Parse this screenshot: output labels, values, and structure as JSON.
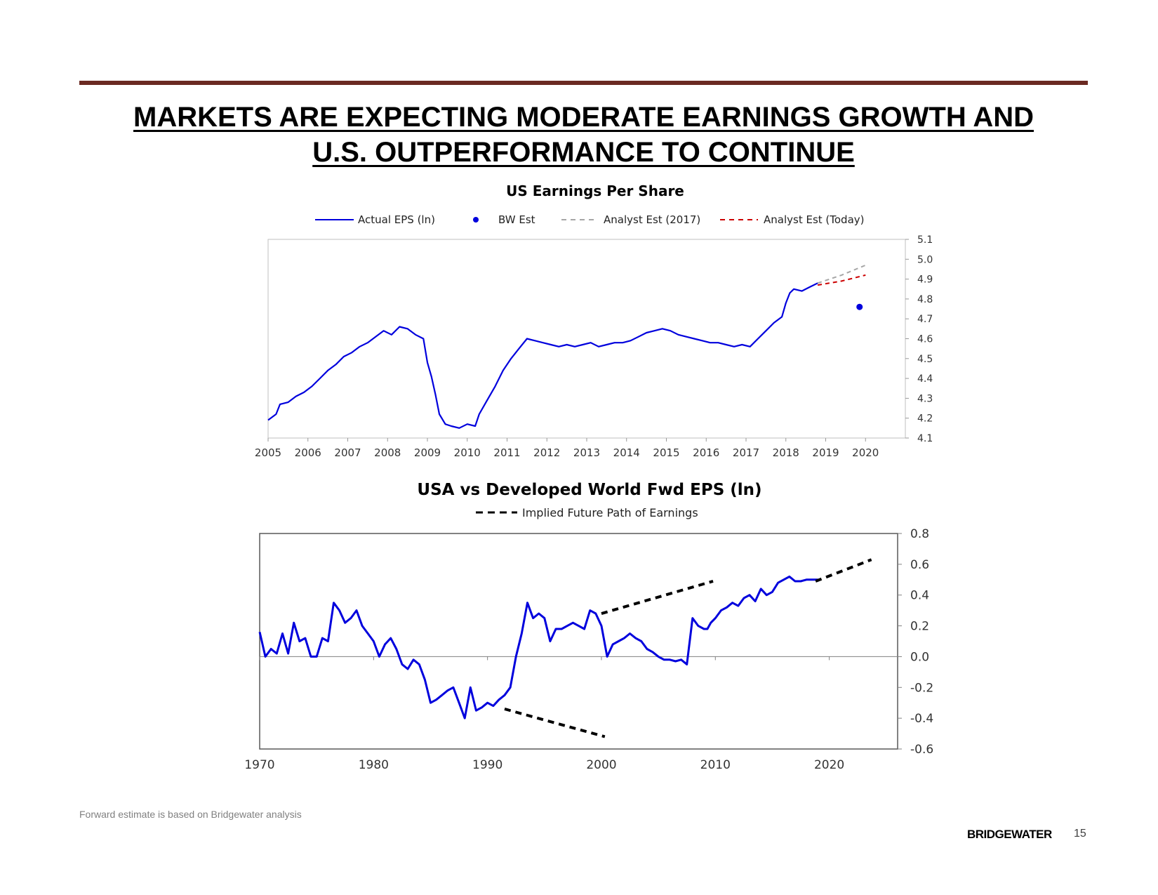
{
  "slide": {
    "title_line1": "MARKETS ARE EXPECTING MODERATE EARNINGS GROWTH AND",
    "title_line2": "U.S. OUTPERFORMANCE TO CONTINUE",
    "footnote": "Forward estimate is based on Bridgewater analysis",
    "brand": "BRIDGEWATER",
    "page_number": "15",
    "accent_color": "#6b2a22"
  },
  "chart_data": [
    {
      "type": "line",
      "title": "US Earnings Per Share",
      "xlabel": "",
      "ylabel": "",
      "xlim": [
        2005,
        2021
      ],
      "ylim": [
        4.1,
        5.1
      ],
      "x_ticks": [
        "2005",
        "2006",
        "2007",
        "2008",
        "2009",
        "2010",
        "2011",
        "2012",
        "2013",
        "2014",
        "2015",
        "2016",
        "2017",
        "2018",
        "2019",
        "2020"
      ],
      "y_ticks": [
        "4.1",
        "4.2",
        "4.3",
        "4.4",
        "4.5",
        "4.6",
        "4.7",
        "4.8",
        "4.9",
        "5.0",
        "5.1"
      ],
      "y_axis_side": "right",
      "legend_position": "top",
      "series": [
        {
          "name": "Actual EPS (ln)",
          "style": "solid",
          "color": "#0000dd",
          "x": [
            2005.0,
            2005.2,
            2005.3,
            2005.5,
            2005.7,
            2005.9,
            2006.1,
            2006.3,
            2006.5,
            2006.7,
            2006.9,
            2007.1,
            2007.3,
            2007.5,
            2007.7,
            2007.9,
            2008.1,
            2008.3,
            2008.5,
            2008.7,
            2008.9,
            2009.0,
            2009.1,
            2009.2,
            2009.3,
            2009.45,
            2009.6,
            2009.8,
            2010.0,
            2010.2,
            2010.3,
            2010.5,
            2010.7,
            2010.9,
            2011.1,
            2011.3,
            2011.5,
            2011.7,
            2011.9,
            2012.1,
            2012.3,
            2012.5,
            2012.7,
            2012.9,
            2013.1,
            2013.3,
            2013.5,
            2013.7,
            2013.9,
            2014.1,
            2014.3,
            2014.5,
            2014.7,
            2014.9,
            2015.1,
            2015.3,
            2015.5,
            2015.7,
            2015.9,
            2016.1,
            2016.3,
            2016.5,
            2016.7,
            2016.9,
            2017.1,
            2017.3,
            2017.5,
            2017.7,
            2017.9,
            2018.0,
            2018.1,
            2018.2,
            2018.4,
            2018.6,
            2018.8
          ],
          "values": [
            4.19,
            4.22,
            4.27,
            4.28,
            4.31,
            4.33,
            4.36,
            4.4,
            4.44,
            4.47,
            4.51,
            4.53,
            4.56,
            4.58,
            4.61,
            4.64,
            4.62,
            4.66,
            4.65,
            4.62,
            4.6,
            4.48,
            4.41,
            4.32,
            4.22,
            4.17,
            4.16,
            4.15,
            4.17,
            4.16,
            4.22,
            4.29,
            4.36,
            4.44,
            4.5,
            4.55,
            4.6,
            4.59,
            4.58,
            4.57,
            4.56,
            4.57,
            4.56,
            4.57,
            4.58,
            4.56,
            4.57,
            4.58,
            4.58,
            4.59,
            4.61,
            4.63,
            4.64,
            4.65,
            4.64,
            4.62,
            4.61,
            4.6,
            4.59,
            4.58,
            4.58,
            4.57,
            4.56,
            4.57,
            4.56,
            4.6,
            4.64,
            4.68,
            4.71,
            4.78,
            4.83,
            4.85,
            4.84,
            4.86,
            4.88
          ]
        },
        {
          "name": "BW Est",
          "style": "marker",
          "color": "#0000dd",
          "x": [
            2019.85
          ],
          "values": [
            4.76
          ]
        },
        {
          "name": "Analyst Est (2017)",
          "style": "dashed",
          "color": "#a6a6a6",
          "x": [
            2018.8,
            2019.4,
            2020.0
          ],
          "values": [
            4.88,
            4.92,
            4.97
          ]
        },
        {
          "name": "Analyst Est (Today)",
          "style": "dashed",
          "color": "#cc0000",
          "x": [
            2018.8,
            2019.4,
            2020.0
          ],
          "values": [
            4.87,
            4.89,
            4.92
          ]
        }
      ]
    },
    {
      "type": "line",
      "title": "USA vs Developed World Fwd EPS (ln)",
      "xlabel": "",
      "ylabel": "",
      "xlim": [
        1970,
        2026
      ],
      "ylim": [
        -0.6,
        0.8
      ],
      "x_ticks": [
        "1970",
        "1980",
        "1990",
        "2000",
        "2010",
        "2020"
      ],
      "y_ticks": [
        "-0.6",
        "-0.4",
        "-0.2",
        "0.0",
        "0.2",
        "0.4",
        "0.6",
        "0.8"
      ],
      "y_axis_side": "right",
      "legend_position": "top",
      "series": [
        {
          "name": "USA vs Developed World",
          "style": "solid",
          "color": "#0000dd",
          "x": [
            1970.0,
            1970.5,
            1971.0,
            1971.5,
            1972.0,
            1972.5,
            1973.0,
            1973.5,
            1974.0,
            1974.5,
            1975.0,
            1975.5,
            1976.0,
            1976.5,
            1977.0,
            1977.5,
            1978.0,
            1978.5,
            1979.0,
            1979.5,
            1980.0,
            1980.5,
            1981.0,
            1981.5,
            1982.0,
            1982.5,
            1983.0,
            1983.5,
            1984.0,
            1984.5,
            1985.0,
            1985.5,
            1986.0,
            1986.5,
            1987.0,
            1987.5,
            1988.0,
            1988.5,
            1989.0,
            1989.5,
            1990.0,
            1990.5,
            1991.0,
            1991.5,
            1992.0,
            1992.5,
            1993.0,
            1993.5,
            1994.0,
            1994.5,
            1995.0,
            1995.5,
            1996.0,
            1996.5,
            1997.0,
            1997.5,
            1998.0,
            1998.5,
            1999.0,
            1999.5,
            2000.0,
            2000.5,
            2001.0,
            2001.5,
            2002.0,
            2002.5,
            2003.0,
            2003.5,
            2004.0,
            2004.5,
            2005.0,
            2005.5,
            2006.0,
            2006.5,
            2007.0,
            2007.5,
            2008.0,
            2008.5,
            2009.0,
            2009.3,
            2009.6,
            2010.0,
            2010.5,
            2011.0,
            2011.5,
            2012.0,
            2012.5,
            2013.0,
            2013.5,
            2014.0,
            2014.5,
            2015.0,
            2015.5,
            2016.0,
            2016.5,
            2017.0,
            2017.5,
            2018.0,
            2018.5,
            2019.0
          ],
          "values": [
            0.16,
            0.0,
            0.05,
            0.02,
            0.15,
            0.02,
            0.22,
            0.1,
            0.12,
            0.0,
            0.0,
            0.12,
            0.1,
            0.35,
            0.3,
            0.22,
            0.25,
            0.3,
            0.2,
            0.15,
            0.1,
            0.0,
            0.08,
            0.12,
            0.05,
            -0.05,
            -0.08,
            -0.02,
            -0.05,
            -0.15,
            -0.3,
            -0.28,
            -0.25,
            -0.22,
            -0.2,
            -0.3,
            -0.4,
            -0.2,
            -0.35,
            -0.33,
            -0.3,
            -0.32,
            -0.28,
            -0.25,
            -0.2,
            0.0,
            0.15,
            0.35,
            0.25,
            0.28,
            0.25,
            0.1,
            0.18,
            0.18,
            0.2,
            0.22,
            0.2,
            0.18,
            0.3,
            0.28,
            0.2,
            0.0,
            0.08,
            0.1,
            0.12,
            0.15,
            0.12,
            0.1,
            0.05,
            0.03,
            0.0,
            -0.02,
            -0.02,
            -0.03,
            -0.02,
            -0.05,
            0.25,
            0.2,
            0.18,
            0.18,
            0.22,
            0.25,
            0.3,
            0.32,
            0.35,
            0.33,
            0.38,
            0.4,
            0.36,
            0.44,
            0.4,
            0.42,
            0.48,
            0.5,
            0.52,
            0.49,
            0.49,
            0.5,
            0.5,
            0.5
          ]
        },
        {
          "name": "Implied Future Path of Earnings",
          "style": "dashed",
          "color": "#000000",
          "segments": [
            {
              "x": [
                1991.5,
                2000.3
              ],
              "values": [
                -0.34,
                -0.52
              ]
            },
            {
              "x": [
                2000.0,
                2009.8
              ],
              "values": [
                0.28,
                0.49
              ]
            },
            {
              "x": [
                2018.8,
                2023.7
              ],
              "values": [
                0.49,
                0.63
              ]
            }
          ]
        }
      ]
    }
  ]
}
